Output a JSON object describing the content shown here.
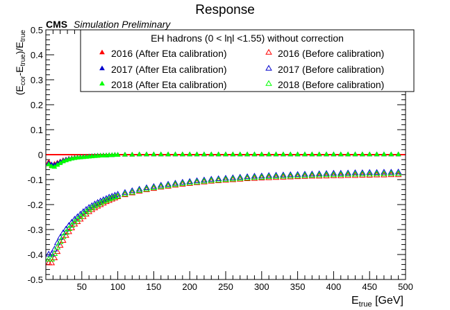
{
  "chart_data": {
    "type": "scatter",
    "title": "Response",
    "experiment_label": "CMS",
    "experiment_sublabel": "Simulation Preliminary",
    "xlabel": {
      "main": "E",
      "sub": "true",
      "unit": " [GeV]"
    },
    "ylabel": {
      "p1": "(E",
      "s1": "cor",
      "p2": "-E",
      "s2": "true",
      "p3": ")/E",
      "s3": "true"
    },
    "xlim": [
      0,
      500
    ],
    "ylim": [
      -0.5,
      0.5
    ],
    "xticks": [
      50,
      100,
      150,
      200,
      250,
      300,
      350,
      400,
      450,
      500
    ],
    "yticks": [
      -0.5,
      -0.4,
      -0.3,
      -0.2,
      -0.1,
      0,
      0.1,
      0.2,
      0.3,
      0.4,
      0.5
    ],
    "grid": false,
    "reference_line": {
      "y": 0,
      "color": "#ff0000"
    },
    "legend": {
      "title": "EH hadrons (0 < lηl <1.55) without correction",
      "placement": "top-right",
      "entries": [
        {
          "label": "2016 (After Eta calibration)",
          "color": "#ff0000",
          "marker": "filled-triangle"
        },
        {
          "label": "2016 (Before calibration)",
          "color": "#ff0000",
          "marker": "open-triangle"
        },
        {
          "label": "2017 (After Eta calibration)",
          "color": "#0000cc",
          "marker": "filled-triangle"
        },
        {
          "label": "2017 (Before calibration)",
          "color": "#0000cc",
          "marker": "open-triangle"
        },
        {
          "label": "2018 (After Eta calibration)",
          "color": "#00ff00",
          "marker": "filled-triangle"
        },
        {
          "label": "2018 (Before calibration)",
          "color": "#00ff00",
          "marker": "open-triangle"
        }
      ]
    },
    "x": [
      4,
      8,
      12,
      16,
      20,
      24,
      28,
      32,
      36,
      40,
      44,
      48,
      52,
      56,
      60,
      64,
      68,
      72,
      76,
      80,
      84,
      88,
      92,
      96,
      100,
      110,
      120,
      130,
      140,
      150,
      160,
      170,
      180,
      190,
      200,
      210,
      220,
      230,
      240,
      250,
      260,
      270,
      280,
      290,
      300,
      310,
      320,
      330,
      340,
      350,
      360,
      370,
      380,
      390,
      400,
      410,
      420,
      430,
      440,
      450,
      460,
      470,
      480,
      490
    ],
    "series": [
      {
        "name": "2016 (After Eta calibration)",
        "color": "#ff0000",
        "marker": "filled",
        "values": [
          -0.03,
          -0.045,
          -0.038,
          -0.033,
          -0.028,
          -0.023,
          -0.02,
          -0.017,
          -0.015,
          -0.013,
          -0.012,
          -0.011,
          -0.01,
          -0.009,
          -0.008,
          -0.007,
          -0.006,
          -0.006,
          -0.005,
          -0.004,
          -0.004,
          -0.003,
          -0.003,
          -0.002,
          -0.002,
          -0.001,
          -0.001,
          0.0,
          0.0,
          0.0,
          0.0,
          0.0,
          0.0,
          0.0,
          0.0,
          0.0,
          0.0,
          0.0,
          0.0,
          0.0,
          0.0,
          0.0,
          0.0,
          0.0,
          0.0,
          0.0,
          0.0,
          0.0,
          0.0,
          0.0,
          0.0,
          0.0,
          0.0,
          0.0,
          0.0,
          0.0,
          0.0,
          0.0,
          0.0,
          0.0,
          0.0,
          0.0,
          0.0,
          0.0
        ]
      },
      {
        "name": "2017 (After Eta calibration)",
        "color": "#0000cc",
        "marker": "filled",
        "values": [
          -0.035,
          -0.04,
          -0.042,
          -0.036,
          -0.03,
          -0.025,
          -0.021,
          -0.018,
          -0.016,
          -0.014,
          -0.012,
          -0.011,
          -0.01,
          -0.009,
          -0.008,
          -0.007,
          -0.006,
          -0.005,
          -0.005,
          -0.004,
          -0.004,
          -0.003,
          -0.003,
          -0.002,
          -0.002,
          -0.001,
          -0.001,
          0.0,
          0.0,
          0.0,
          0.0,
          0.0,
          0.0,
          0.0,
          0.0,
          0.0,
          0.0,
          0.0,
          0.0,
          0.0,
          0.0,
          0.0,
          0.0,
          0.0,
          0.0,
          0.0,
          0.0,
          0.0,
          0.0,
          0.0,
          0.0,
          0.0,
          0.0,
          0.0,
          0.0,
          0.0,
          0.0,
          0.0,
          0.0,
          0.0,
          0.0,
          0.0,
          0.0,
          0.0
        ]
      },
      {
        "name": "2018 (After Eta calibration)",
        "color": "#00ff00",
        "marker": "filled",
        "values": [
          -0.04,
          -0.048,
          -0.05,
          -0.042,
          -0.035,
          -0.028,
          -0.024,
          -0.02,
          -0.017,
          -0.015,
          -0.013,
          -0.012,
          -0.011,
          -0.01,
          -0.009,
          -0.008,
          -0.007,
          -0.006,
          -0.005,
          -0.005,
          -0.004,
          -0.003,
          -0.003,
          -0.002,
          -0.002,
          -0.001,
          -0.001,
          0.0,
          0.0,
          0.0,
          0.0,
          0.0,
          0.0,
          0.0,
          0.0,
          0.0,
          0.0,
          0.0,
          0.0,
          0.0,
          0.0,
          0.0,
          0.0,
          0.0,
          0.0,
          0.0,
          0.0,
          0.0,
          0.0,
          0.0,
          0.0,
          0.0,
          0.0,
          0.0,
          0.0,
          0.0,
          0.0,
          0.0,
          0.0,
          0.0,
          0.0,
          0.0,
          0.0,
          0.0
        ]
      },
      {
        "name": "2016 (Before calibration)",
        "color": "#ff0000",
        "marker": "open",
        "values": [
          -0.435,
          -0.435,
          -0.415,
          -0.39,
          -0.365,
          -0.345,
          -0.325,
          -0.31,
          -0.295,
          -0.28,
          -0.27,
          -0.26,
          -0.25,
          -0.24,
          -0.23,
          -0.222,
          -0.215,
          -0.208,
          -0.202,
          -0.196,
          -0.19,
          -0.185,
          -0.18,
          -0.175,
          -0.17,
          -0.162,
          -0.155,
          -0.148,
          -0.142,
          -0.137,
          -0.132,
          -0.128,
          -0.124,
          -0.12,
          -0.117,
          -0.114,
          -0.111,
          -0.108,
          -0.106,
          -0.104,
          -0.102,
          -0.1,
          -0.098,
          -0.097,
          -0.095,
          -0.094,
          -0.093,
          -0.092,
          -0.091,
          -0.09,
          -0.089,
          -0.088,
          -0.088,
          -0.087,
          -0.086,
          -0.086,
          -0.085,
          -0.085,
          -0.084,
          -0.084,
          -0.083,
          -0.083,
          -0.082,
          -0.082
        ]
      },
      {
        "name": "2017 (Before calibration)",
        "color": "#0000cc",
        "marker": "open",
        "values": [
          -0.4,
          -0.4,
          -0.38,
          -0.355,
          -0.333,
          -0.315,
          -0.3,
          -0.285,
          -0.272,
          -0.26,
          -0.25,
          -0.24,
          -0.23,
          -0.221,
          -0.213,
          -0.206,
          -0.199,
          -0.193,
          -0.187,
          -0.182,
          -0.177,
          -0.172,
          -0.168,
          -0.164,
          -0.16,
          -0.153,
          -0.146,
          -0.14,
          -0.134,
          -0.129,
          -0.124,
          -0.12,
          -0.116,
          -0.112,
          -0.109,
          -0.106,
          -0.103,
          -0.1,
          -0.098,
          -0.096,
          -0.094,
          -0.092,
          -0.09,
          -0.088,
          -0.087,
          -0.085,
          -0.084,
          -0.083,
          -0.082,
          -0.081,
          -0.08,
          -0.079,
          -0.078,
          -0.077,
          -0.076,
          -0.076,
          -0.075,
          -0.074,
          -0.074,
          -0.073,
          -0.073,
          -0.072,
          -0.072,
          -0.071
        ]
      },
      {
        "name": "2018 (Before calibration)",
        "color": "#00ff00",
        "marker": "open",
        "values": [
          -0.42,
          -0.42,
          -0.398,
          -0.372,
          -0.35,
          -0.33,
          -0.313,
          -0.298,
          -0.284,
          -0.271,
          -0.26,
          -0.25,
          -0.24,
          -0.231,
          -0.222,
          -0.214,
          -0.207,
          -0.201,
          -0.195,
          -0.189,
          -0.184,
          -0.179,
          -0.175,
          -0.171,
          -0.167,
          -0.159,
          -0.152,
          -0.145,
          -0.139,
          -0.134,
          -0.129,
          -0.125,
          -0.121,
          -0.117,
          -0.114,
          -0.111,
          -0.108,
          -0.105,
          -0.103,
          -0.101,
          -0.099,
          -0.097,
          -0.095,
          -0.093,
          -0.092,
          -0.09,
          -0.089,
          -0.088,
          -0.087,
          -0.086,
          -0.085,
          -0.084,
          -0.083,
          -0.082,
          -0.082,
          -0.081,
          -0.08,
          -0.08,
          -0.079,
          -0.079,
          -0.078,
          -0.078,
          -0.077,
          -0.077
        ]
      }
    ]
  }
}
